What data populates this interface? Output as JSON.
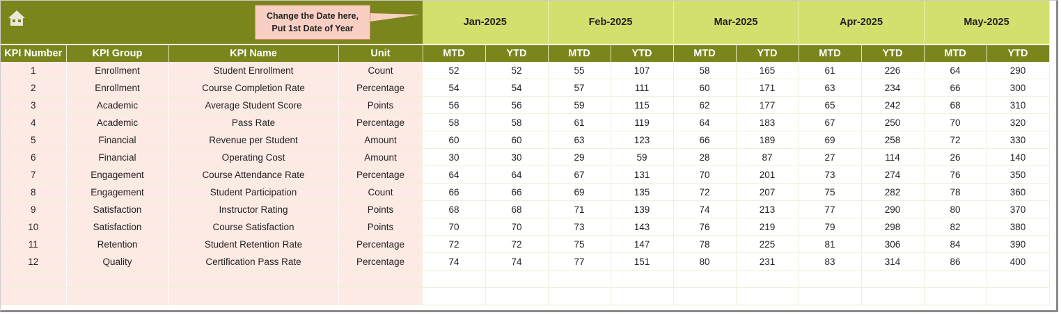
{
  "header": {
    "callout_line1": "Change the Date here,",
    "callout_line2": "Put 1st Date of Year",
    "home_icon": "home-icon",
    "months": [
      "Jan-2025",
      "Feb-2025",
      "Mar-2025",
      "Apr-2025",
      "May-2025"
    ]
  },
  "columns": [
    "KPI Number",
    "KPI Group",
    "KPI Name",
    "Unit"
  ],
  "sub_columns": [
    "MTD",
    "YTD"
  ],
  "colors": {
    "banner": "#7a861c",
    "month_bg": "#d4e06e",
    "left_cells": "#fdeae4",
    "callout": "#f9cfc4"
  },
  "rows": [
    {
      "num": "1",
      "group": "Enrollment",
      "name": "Student Enrollment",
      "unit": "Count",
      "values": [
        "52",
        "52",
        "55",
        "107",
        "58",
        "165",
        "61",
        "226",
        "64",
        "290"
      ]
    },
    {
      "num": "2",
      "group": "Enrollment",
      "name": "Course Completion Rate",
      "unit": "Percentage",
      "values": [
        "54",
        "54",
        "57",
        "111",
        "60",
        "171",
        "63",
        "234",
        "66",
        "300"
      ]
    },
    {
      "num": "3",
      "group": "Academic",
      "name": "Average Student Score",
      "unit": "Points",
      "values": [
        "56",
        "56",
        "59",
        "115",
        "62",
        "177",
        "65",
        "242",
        "68",
        "310"
      ]
    },
    {
      "num": "4",
      "group": "Academic",
      "name": "Pass Rate",
      "unit": "Percentage",
      "values": [
        "58",
        "58",
        "61",
        "119",
        "64",
        "183",
        "67",
        "250",
        "70",
        "320"
      ]
    },
    {
      "num": "5",
      "group": "Financial",
      "name": "Revenue per Student",
      "unit": "Amount",
      "values": [
        "60",
        "60",
        "63",
        "123",
        "66",
        "189",
        "69",
        "258",
        "72",
        "330"
      ]
    },
    {
      "num": "6",
      "group": "Financial",
      "name": "Operating Cost",
      "unit": "Amount",
      "values": [
        "30",
        "30",
        "29",
        "59",
        "28",
        "87",
        "27",
        "114",
        "26",
        "140"
      ]
    },
    {
      "num": "7",
      "group": "Engagement",
      "name": "Course Attendance Rate",
      "unit": "Percentage",
      "values": [
        "64",
        "64",
        "67",
        "131",
        "70",
        "201",
        "73",
        "274",
        "76",
        "350"
      ]
    },
    {
      "num": "8",
      "group": "Engagement",
      "name": "Student Participation",
      "unit": "Count",
      "values": [
        "66",
        "66",
        "69",
        "135",
        "72",
        "207",
        "75",
        "282",
        "78",
        "360"
      ]
    },
    {
      "num": "9",
      "group": "Satisfaction",
      "name": "Instructor Rating",
      "unit": "Points",
      "values": [
        "68",
        "68",
        "71",
        "139",
        "74",
        "213",
        "77",
        "290",
        "80",
        "370"
      ]
    },
    {
      "num": "10",
      "group": "Satisfaction",
      "name": "Course Satisfaction",
      "unit": "Points",
      "values": [
        "70",
        "70",
        "73",
        "143",
        "76",
        "219",
        "79",
        "298",
        "82",
        "380"
      ]
    },
    {
      "num": "11",
      "group": "Retention",
      "name": "Student Retention Rate",
      "unit": "Percentage",
      "values": [
        "72",
        "72",
        "75",
        "147",
        "78",
        "225",
        "81",
        "306",
        "84",
        "390"
      ]
    },
    {
      "num": "12",
      "group": "Quality",
      "name": "Certification Pass Rate",
      "unit": "Percentage",
      "values": [
        "74",
        "74",
        "77",
        "151",
        "80",
        "231",
        "83",
        "314",
        "86",
        "400"
      ]
    }
  ]
}
